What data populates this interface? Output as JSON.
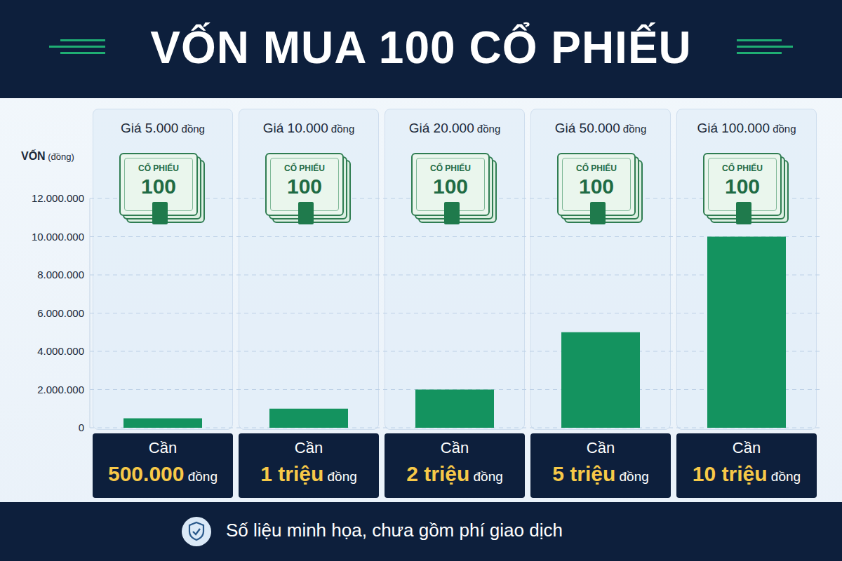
{
  "chart_data": {
    "type": "bar",
    "title": "VỐN MUA 100 CỔ PHIẾU",
    "y_label": "VỐN (đồng)",
    "categories": [
      "Giá 5.000 đồng",
      "Giá 10.000 đồng",
      "Giá 20.000 đồng",
      "Giá 50.000 đồng",
      "Giá 100.000 đồng"
    ],
    "values": [
      500000,
      1000000,
      2000000,
      5000000,
      10000000
    ],
    "value_labels": [
      "500.000 đồng",
      "1 triệu đồng",
      "2 triệu đồng",
      "5 triệu đồng",
      "10 triệu đồng"
    ],
    "value_label_prefix": "Cần",
    "icon_text": [
      "CỔ PHIẾU",
      "100"
    ],
    "footnote": "Số liệu minh họa, chưa gồm phí giao dịch",
    "color": "#14935f",
    "ylim": [
      0,
      12000000
    ],
    "yticks": [
      0,
      {
        "value": 2000000,
        "label": "2.000.000"
      },
      {
        "value": 4000000,
        "label": "4.000.000"
      },
      {
        "value": 6000000,
        "label": "6.000.000"
      },
      {
        "value": 8000000,
        "label": "8.000.000"
      },
      {
        "value": 10000000,
        "label": "10.000.000"
      },
      {
        "value": 12000000,
        "label": "12.000.000"
      }
    ],
    "grid": true,
    "data_labels": true
  }
}
